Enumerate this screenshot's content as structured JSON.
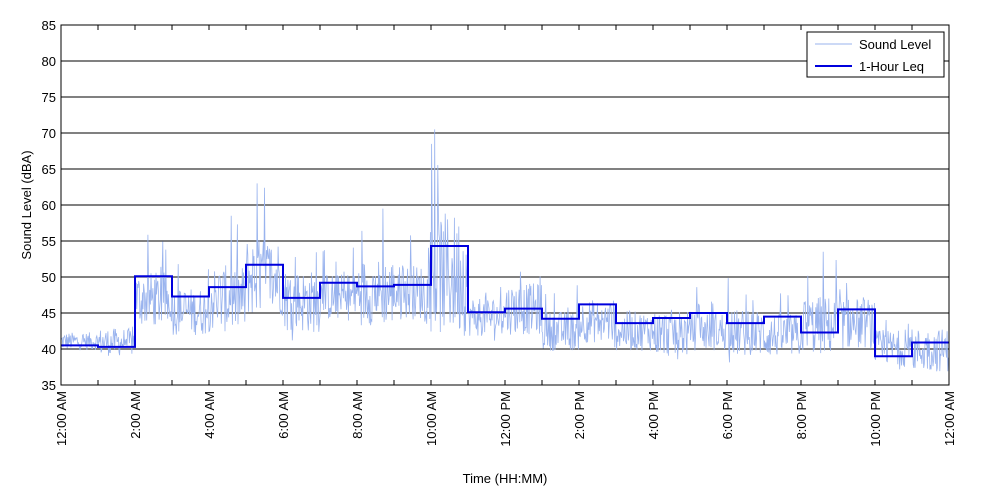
{
  "chart_data": {
    "type": "line",
    "title": "",
    "xlabel": "Time (HH:MM)",
    "ylabel": "Sound Level (dBA)",
    "ylim": [
      35,
      85
    ],
    "yticks": [
      35,
      40,
      45,
      50,
      55,
      60,
      65,
      70,
      75,
      80,
      85
    ],
    "xlim_hours": [
      0,
      24
    ],
    "xtick_labels": [
      "12:00 AM",
      "2:00 AM",
      "4:00 AM",
      "6:00 AM",
      "8:00 AM",
      "10:00 AM",
      "12:00 PM",
      "2:00 PM",
      "4:00 PM",
      "6:00 PM",
      "8:00 PM",
      "10:00 PM",
      "12:00 AM"
    ],
    "grid": "horizontal",
    "legend_position": "top-right",
    "series": [
      {
        "name": "Sound Level",
        "style": "thin-line",
        "color": "#99b3ee",
        "hour_ranges": [
          [
            39.5,
            44
          ],
          [
            38.5,
            45.5
          ],
          [
            42,
            56
          ],
          [
            41,
            53
          ],
          [
            41,
            58
          ],
          [
            43,
            63
          ],
          [
            41,
            57
          ],
          [
            43,
            55
          ],
          [
            42,
            59
          ],
          [
            43,
            57
          ],
          [
            39.5,
            70.5
          ],
          [
            41,
            51
          ],
          [
            41,
            54
          ],
          [
            39,
            49
          ],
          [
            40,
            51
          ],
          [
            39,
            49
          ],
          [
            38,
            50
          ],
          [
            39,
            49
          ],
          [
            38,
            50
          ],
          [
            38,
            49
          ],
          [
            38,
            53
          ],
          [
            39,
            52
          ],
          [
            37,
            46
          ],
          [
            36,
            47
          ]
        ],
        "spikes": [
          {
            "hour": 5.3,
            "value": 63
          },
          {
            "hour": 10.1,
            "value": 70.5
          },
          {
            "hour": 8.7,
            "value": 59.5
          },
          {
            "hour": 4.6,
            "value": 58.5
          },
          {
            "hour": 20.6,
            "value": 53.5
          }
        ]
      },
      {
        "name": "1-Hour Leq",
        "style": "step",
        "color": "#0000dd",
        "values": [
          40.5,
          40.3,
          50.1,
          47.3,
          48.6,
          51.7,
          47.1,
          49.2,
          48.7,
          48.9,
          54.3,
          45.1,
          45.6,
          44.2,
          46.2,
          43.6,
          44.3,
          45.0,
          43.6,
          44.5,
          42.3,
          45.5,
          39.0,
          40.9
        ]
      }
    ]
  }
}
